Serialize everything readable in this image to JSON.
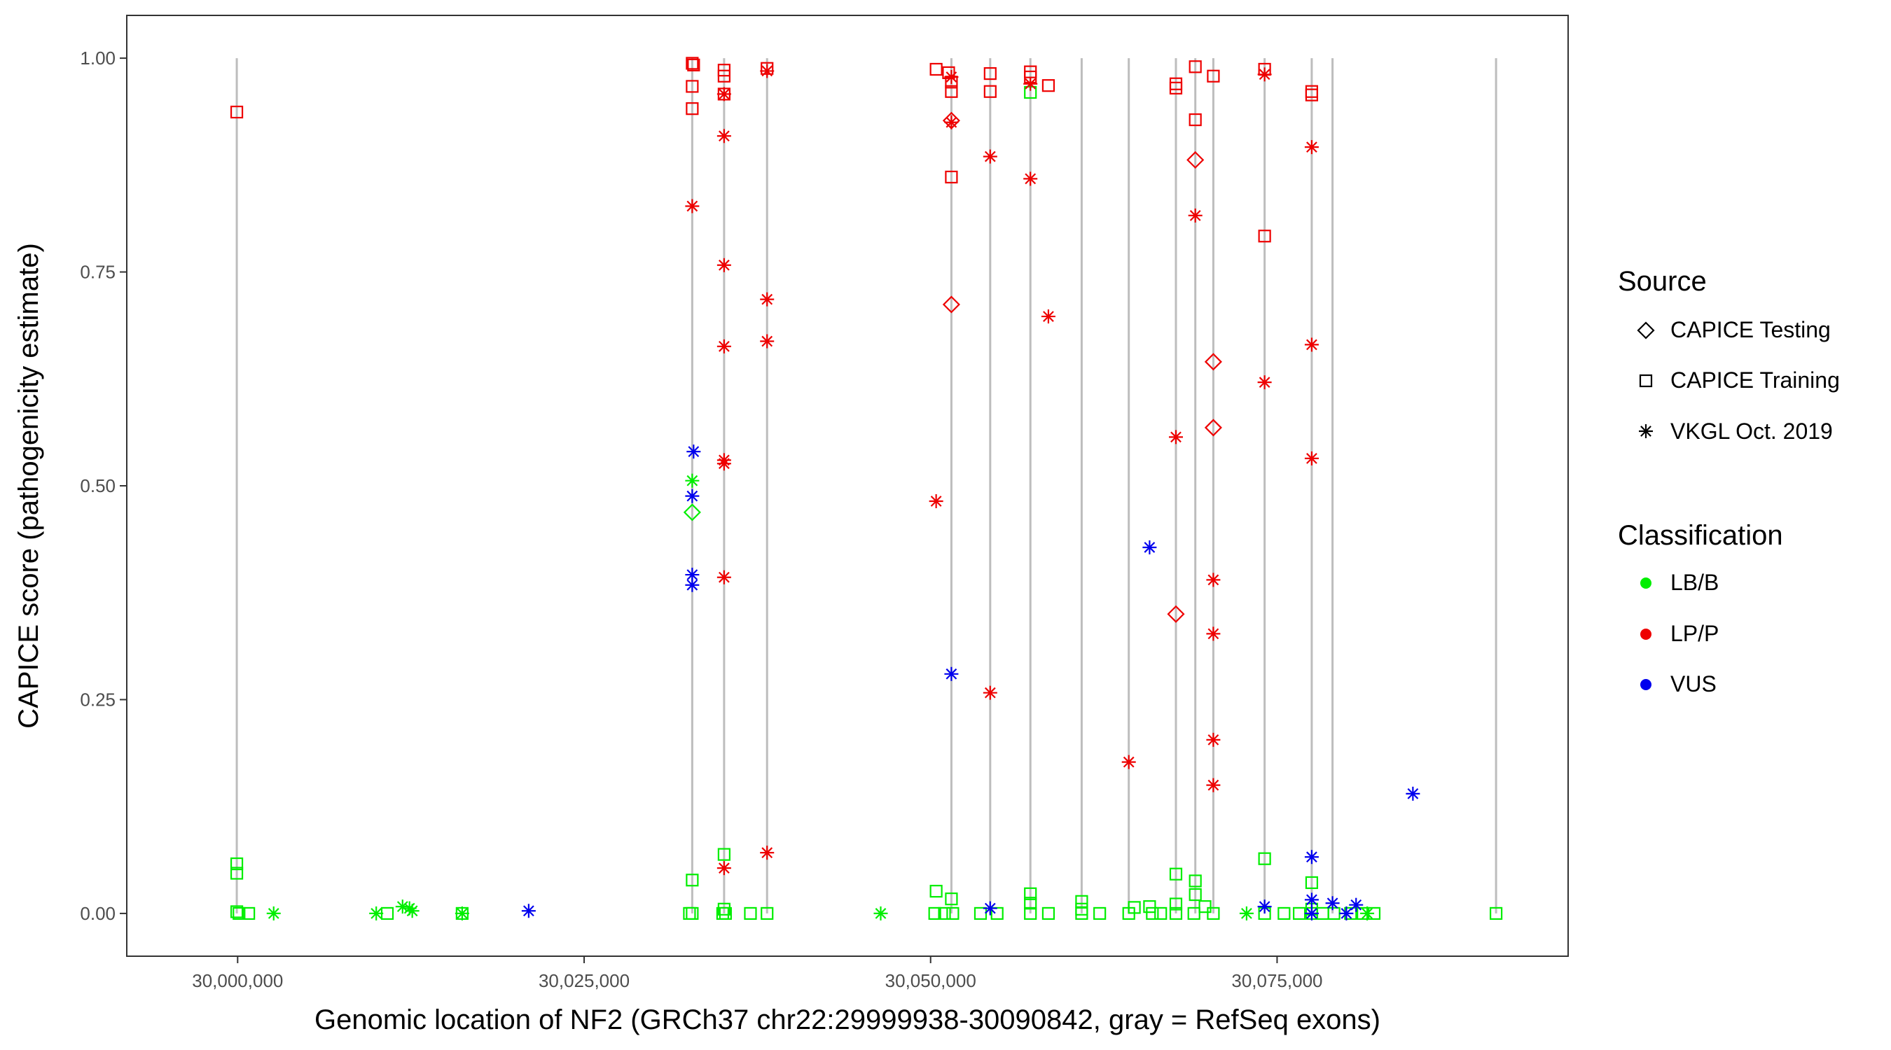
{
  "chart_data": {
    "type": "scatter",
    "title": "",
    "xlabel": "Genomic location of NF2 (GRCh37 chr22:29999938-30090842, gray = RefSeq exons)",
    "ylabel": "CAPICE score (pathogenicity estimate)",
    "xlim": [
      29992000,
      30096000
    ],
    "ylim": [
      -0.05,
      1.05
    ],
    "x_ticks": [
      30000000,
      30025000,
      30050000,
      30075000
    ],
    "x_tick_labels": [
      "30,000,000",
      "30,025,000",
      "30,050,000",
      "30,075,000"
    ],
    "y_ticks": [
      0,
      0.25,
      0.5,
      0.75,
      1
    ],
    "y_tick_labels": [
      "0.00",
      "0.25",
      "0.50",
      "0.75",
      "1.00"
    ],
    "grid": false,
    "exons": [
      29999938,
      30032800,
      30035100,
      30038200,
      30051500,
      30054300,
      30057200,
      30060900,
      30064300,
      30067700,
      30069100,
      30070400,
      30074100,
      30077500,
      30079000,
      30090800
    ],
    "colors": {
      "LB/B": "#00ee00",
      "LP/P": "#ee0000",
      "VUS": "#0000ee"
    },
    "legend": {
      "placement": "right",
      "source_title": "Source",
      "source_entries": [
        {
          "label": "CAPICE Testing",
          "shape": "diamond"
        },
        {
          "label": "CAPICE Training",
          "shape": "square"
        },
        {
          "label": "VKGL Oct. 2019",
          "shape": "asterisk"
        }
      ],
      "class_title": "Classification",
      "class_entries": [
        {
          "label": "LB/B",
          "color": "#00ee00"
        },
        {
          "label": "LP/P",
          "color": "#ee0000"
        },
        {
          "label": "VUS",
          "color": "#0000ee"
        }
      ]
    },
    "series": [
      {
        "name": "CAPICE Training",
        "shape": "square",
        "points": [
          [
            29999938,
            0.937,
            "LP/P"
          ],
          [
            29999938,
            0.058,
            "LB/B"
          ],
          [
            29999938,
            0.047,
            "LB/B"
          ],
          [
            29999938,
            0.002,
            "LB/B"
          ],
          [
            30000100,
            0.0,
            "LB/B"
          ],
          [
            30000800,
            0.0,
            "LB/B"
          ],
          [
            30010800,
            0.0,
            "LB/B"
          ],
          [
            30016200,
            0.0,
            "LB/B"
          ],
          [
            30032800,
            0.994,
            "LP/P"
          ],
          [
            30032900,
            0.992,
            "LP/P"
          ],
          [
            30032800,
            0.967,
            "LP/P"
          ],
          [
            30032800,
            0.941,
            "LP/P"
          ],
          [
            30032800,
            0.039,
            "LB/B"
          ],
          [
            30032600,
            0.0,
            "LB/B"
          ],
          [
            30032800,
            0.0,
            "LB/B"
          ],
          [
            30035100,
            0.986,
            "LP/P"
          ],
          [
            30035100,
            0.979,
            "LP/P"
          ],
          [
            30035100,
            0.958,
            "LP/P"
          ],
          [
            30035100,
            0.069,
            "LB/B"
          ],
          [
            30035100,
            0.005,
            "LB/B"
          ],
          [
            30035000,
            0.0,
            "LB/B"
          ],
          [
            30035200,
            0.0,
            "LB/B"
          ],
          [
            30037000,
            0.0,
            "LB/B"
          ],
          [
            30038200,
            0.988,
            "LP/P"
          ],
          [
            30038200,
            0.0,
            "LB/B"
          ],
          [
            30050400,
            0.987,
            "LP/P"
          ],
          [
            30051300,
            0.983,
            "LP/P"
          ],
          [
            30051500,
            0.972,
            "LP/P"
          ],
          [
            30051500,
            0.961,
            "LP/P"
          ],
          [
            30051500,
            0.861,
            "LP/P"
          ],
          [
            30050400,
            0.026,
            "LB/B"
          ],
          [
            30051500,
            0.017,
            "LB/B"
          ],
          [
            30050300,
            0.0,
            "LB/B"
          ],
          [
            30051000,
            0.0,
            "LB/B"
          ],
          [
            30051600,
            0.0,
            "LB/B"
          ],
          [
            30054300,
            0.982,
            "LP/P"
          ],
          [
            30054300,
            0.961,
            "LP/P"
          ],
          [
            30053600,
            0.0,
            "LB/B"
          ],
          [
            30054800,
            0.0,
            "LB/B"
          ],
          [
            30057200,
            0.984,
            "LP/P"
          ],
          [
            30057200,
            0.978,
            "LP/P"
          ],
          [
            30057200,
            0.96,
            "LB/B"
          ],
          [
            30058500,
            0.968,
            "LP/P"
          ],
          [
            30057200,
            0.023,
            "LB/B"
          ],
          [
            30057200,
            0.012,
            "LB/B"
          ],
          [
            30057200,
            0.0,
            "LB/B"
          ],
          [
            30058500,
            0.0,
            "LB/B"
          ],
          [
            30060900,
            0.014,
            "LB/B"
          ],
          [
            30060900,
            0.005,
            "LB/B"
          ],
          [
            30060900,
            0.0,
            "LB/B"
          ],
          [
            30062200,
            0.0,
            "LB/B"
          ],
          [
            30064300,
            0.0,
            "LB/B"
          ],
          [
            30064700,
            0.007,
            "LB/B"
          ],
          [
            30065800,
            0.008,
            "LB/B"
          ],
          [
            30066000,
            0.0,
            "LB/B"
          ],
          [
            30066600,
            0.0,
            "LB/B"
          ],
          [
            30067700,
            0.97,
            "LP/P"
          ],
          [
            30067700,
            0.965,
            "LP/P"
          ],
          [
            30067700,
            0.046,
            "LB/B"
          ],
          [
            30067700,
            0.011,
            "LB/B"
          ],
          [
            30067700,
            0.0,
            "LB/B"
          ],
          [
            30069100,
            0.99,
            "LP/P"
          ],
          [
            30069100,
            0.928,
            "LP/P"
          ],
          [
            30069100,
            0.038,
            "LB/B"
          ],
          [
            30069100,
            0.022,
            "LB/B"
          ],
          [
            30069000,
            0.0,
            "LB/B"
          ],
          [
            30069800,
            0.008,
            "LB/B"
          ],
          [
            30070400,
            0.979,
            "LP/P"
          ],
          [
            30070400,
            0.0,
            "LB/B"
          ],
          [
            30074100,
            0.987,
            "LP/P"
          ],
          [
            30074100,
            0.792,
            "LP/P"
          ],
          [
            30074100,
            0.064,
            "LB/B"
          ],
          [
            30074100,
            0.0,
            "LB/B"
          ],
          [
            30075500,
            0.0,
            "LB/B"
          ],
          [
            30076600,
            0.0,
            "LB/B"
          ],
          [
            30077500,
            0.961,
            "LP/P"
          ],
          [
            30077500,
            0.957,
            "LP/P"
          ],
          [
            30077500,
            0.036,
            "LB/B"
          ],
          [
            30077500,
            0.005,
            "LB/B"
          ],
          [
            30077500,
            0.0,
            "LB/B"
          ],
          [
            30078300,
            0.0,
            "LB/B"
          ],
          [
            30079100,
            0.0,
            "LB/B"
          ],
          [
            30080300,
            0.0,
            "LB/B"
          ],
          [
            30081200,
            0.0,
            "LB/B"
          ],
          [
            30082000,
            0.0,
            "LB/B"
          ],
          [
            30090800,
            0.0,
            "LB/B"
          ]
        ]
      },
      {
        "name": "CAPICE Testing",
        "shape": "diamond",
        "points": [
          [
            30032800,
            0.469,
            "LB/B"
          ],
          [
            30051500,
            0.712,
            "LP/P"
          ],
          [
            30051500,
            0.927,
            "LP/P"
          ],
          [
            30067700,
            0.35,
            "LP/P"
          ],
          [
            30069100,
            0.881,
            "LP/P"
          ],
          [
            30070400,
            0.645,
            "LP/P"
          ],
          [
            30070400,
            0.568,
            "LP/P"
          ]
        ]
      },
      {
        "name": "VKGL Oct. 2019",
        "shape": "asterisk",
        "points": [
          [
            30002600,
            0.0,
            "LB/B"
          ],
          [
            30010000,
            0.0,
            "LB/B"
          ],
          [
            30011900,
            0.008,
            "LB/B"
          ],
          [
            30012400,
            0.006,
            "LB/B"
          ],
          [
            30012600,
            0.003,
            "LB/B"
          ],
          [
            30016200,
            0.0,
            "LB/B"
          ],
          [
            30021000,
            0.003,
            "VUS"
          ],
          [
            30032800,
            0.827,
            "LP/P"
          ],
          [
            30032800,
            0.506,
            "LB/B"
          ],
          [
            30032900,
            0.54,
            "VUS"
          ],
          [
            30032800,
            0.488,
            "VUS"
          ],
          [
            30032800,
            0.396,
            "VUS"
          ],
          [
            30032800,
            0.384,
            "VUS"
          ],
          [
            30035100,
            0.958,
            "LP/P"
          ],
          [
            30035100,
            0.909,
            "LP/P"
          ],
          [
            30035100,
            0.758,
            "LP/P"
          ],
          [
            30035100,
            0.663,
            "LP/P"
          ],
          [
            30035100,
            0.53,
            "LP/P"
          ],
          [
            30035100,
            0.526,
            "LP/P"
          ],
          [
            30035100,
            0.393,
            "LP/P"
          ],
          [
            30035100,
            0.053,
            "LP/P"
          ],
          [
            30038200,
            0.985,
            "LP/P"
          ],
          [
            30038200,
            0.718,
            "LP/P"
          ],
          [
            30038200,
            0.669,
            "LP/P"
          ],
          [
            30038200,
            0.071,
            "LP/P"
          ],
          [
            30046400,
            0.0,
            "LB/B"
          ],
          [
            30050400,
            0.482,
            "LP/P"
          ],
          [
            30051500,
            0.978,
            "LP/P"
          ],
          [
            30051500,
            0.925,
            "LP/P"
          ],
          [
            30051500,
            0.28,
            "VUS"
          ],
          [
            30054300,
            0.885,
            "LP/P"
          ],
          [
            30054300,
            0.258,
            "LP/P"
          ],
          [
            30054300,
            0.006,
            "VUS"
          ],
          [
            30057200,
            0.97,
            "LP/P"
          ],
          [
            30057200,
            0.859,
            "LP/P"
          ],
          [
            30058500,
            0.698,
            "LP/P"
          ],
          [
            30064300,
            0.177,
            "LP/P"
          ],
          [
            30065800,
            0.428,
            "VUS"
          ],
          [
            30067700,
            0.557,
            "LP/P"
          ],
          [
            30069100,
            0.816,
            "LP/P"
          ],
          [
            30070400,
            0.39,
            "LP/P"
          ],
          [
            30070400,
            0.327,
            "LP/P"
          ],
          [
            30070400,
            0.203,
            "LP/P"
          ],
          [
            30070400,
            0.15,
            "LP/P"
          ],
          [
            30074100,
            0.981,
            "LP/P"
          ],
          [
            30074100,
            0.621,
            "LP/P"
          ],
          [
            30074100,
            0.008,
            "VUS"
          ],
          [
            30077500,
            0.896,
            "LP/P"
          ],
          [
            30077500,
            0.665,
            "LP/P"
          ],
          [
            30077500,
            0.532,
            "LP/P"
          ],
          [
            30077500,
            0.066,
            "VUS"
          ],
          [
            30077500,
            0.016,
            "VUS"
          ],
          [
            30077500,
            0.0,
            "VUS"
          ],
          [
            30072800,
            0.0,
            "LB/B"
          ],
          [
            30079000,
            0.012,
            "VUS"
          ],
          [
            30080000,
            0.0,
            "VUS"
          ],
          [
            30080700,
            0.01,
            "VUS"
          ],
          [
            30081500,
            0.0,
            "LB/B"
          ],
          [
            30084800,
            0.14,
            "VUS"
          ]
        ]
      }
    ]
  }
}
